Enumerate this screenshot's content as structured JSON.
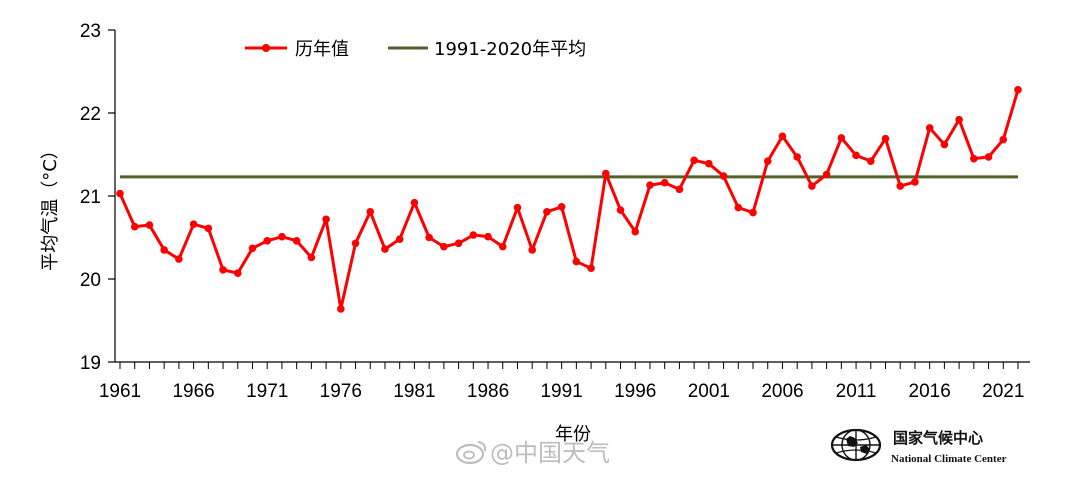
{
  "chart_data": {
    "type": "line",
    "xlabel": "年份",
    "ylabel": "平均气温（°C）",
    "ylim": [
      19,
      23
    ],
    "yticks": [
      19,
      20,
      21,
      22,
      23
    ],
    "xlim": [
      1961,
      2022
    ],
    "xtick_labels": [
      1961,
      1966,
      1971,
      1976,
      1981,
      1986,
      1991,
      1996,
      2001,
      2006,
      2011,
      2016,
      2021
    ],
    "legend_position": "top",
    "series": [
      {
        "name": "历年值",
        "color": "#ff0000",
        "x": [
          1961,
          1962,
          1963,
          1964,
          1965,
          1966,
          1967,
          1968,
          1969,
          1970,
          1971,
          1972,
          1973,
          1974,
          1975,
          1976,
          1977,
          1978,
          1979,
          1980,
          1981,
          1982,
          1983,
          1984,
          1985,
          1986,
          1987,
          1988,
          1989,
          1990,
          1991,
          1992,
          1993,
          1994,
          1995,
          1996,
          1997,
          1998,
          1999,
          2000,
          2001,
          2002,
          2003,
          2004,
          2005,
          2006,
          2007,
          2008,
          2009,
          2010,
          2011,
          2012,
          2013,
          2014,
          2015,
          2016,
          2017,
          2018,
          2019,
          2020,
          2021,
          2022
        ],
        "values": [
          21.03,
          20.63,
          20.65,
          20.35,
          20.24,
          20.66,
          20.61,
          20.11,
          20.07,
          20.37,
          20.46,
          20.51,
          20.46,
          20.26,
          20.72,
          19.64,
          20.43,
          20.81,
          20.36,
          20.48,
          20.92,
          20.5,
          20.39,
          20.43,
          20.53,
          20.51,
          20.39,
          20.86,
          20.35,
          20.81,
          20.87,
          20.21,
          20.13,
          21.27,
          20.83,
          20.57,
          21.13,
          21.16,
          21.08,
          21.43,
          21.39,
          21.24,
          20.86,
          20.8,
          21.42,
          21.72,
          21.47,
          21.12,
          21.26,
          21.7,
          21.49,
          21.42,
          21.69,
          21.12,
          21.17,
          21.82,
          21.62,
          21.92,
          21.45,
          21.47,
          21.68,
          22.28
        ]
      },
      {
        "name": "1991-2020年平均",
        "color": "#4f6228",
        "type": "hline",
        "value": 21.23
      }
    ]
  },
  "watermark": "@中国天气",
  "org": {
    "name_cn": "国家气候中心",
    "name_en": "National Climate Center"
  }
}
